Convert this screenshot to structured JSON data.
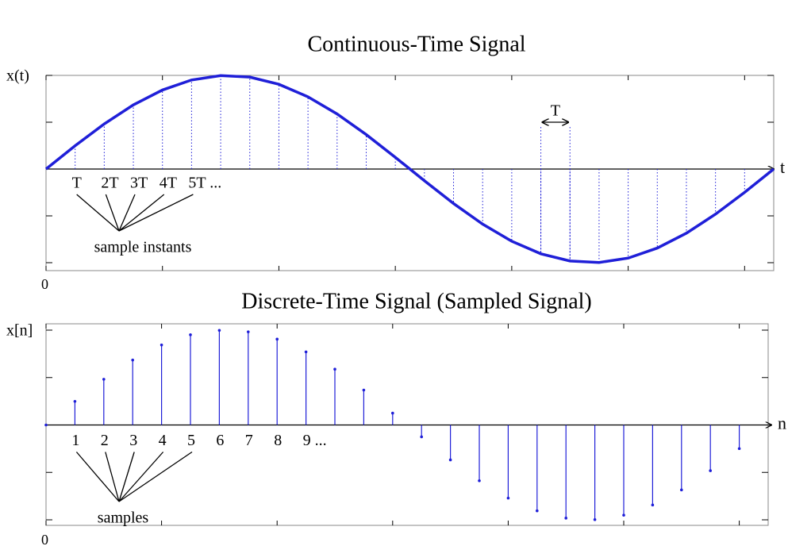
{
  "chart_data": [
    {
      "type": "line",
      "title": "Continuous-Time Signal",
      "y_label": "x(t)",
      "x_label": "t",
      "color": "#1f1fd8",
      "x": [
        0,
        1,
        2,
        3,
        4,
        5,
        6,
        7,
        8,
        9,
        10,
        11,
        12,
        13,
        14,
        15,
        16,
        17,
        18,
        19,
        20,
        21,
        22,
        23,
        24,
        25
      ],
      "values": [
        0,
        0.249,
        0.482,
        0.685,
        0.844,
        0.951,
        0.998,
        0.982,
        0.905,
        0.771,
        0.588,
        0.368,
        0.125,
        -0.125,
        -0.368,
        -0.588,
        -0.771,
        -0.905,
        -0.982,
        -0.998,
        -0.951,
        -0.844,
        -0.685,
        -0.482,
        -0.249,
        0
      ],
      "xlim": [
        0,
        25
      ],
      "ylim": [
        -1,
        1
      ],
      "xticks": [
        0,
        4,
        8,
        12,
        16,
        20,
        24
      ],
      "yticks": [
        -1,
        -0.5,
        0,
        0.5,
        1
      ],
      "origin_label": "0",
      "sample_labels": [
        "T",
        "2T",
        "3T",
        "4T",
        "5T ..."
      ],
      "annotation": "sample instants",
      "period_label": "T"
    },
    {
      "type": "stem",
      "title": "Discrete-Time Signal (Sampled Signal)",
      "y_label": "x[n]",
      "x_label": "n",
      "color": "#1f1fd8",
      "x": [
        0,
        1,
        2,
        3,
        4,
        5,
        6,
        7,
        8,
        9,
        10,
        11,
        12,
        13,
        14,
        15,
        16,
        17,
        18,
        19,
        20,
        21,
        22,
        23,
        24
      ],
      "values": [
        0,
        0.249,
        0.482,
        0.685,
        0.844,
        0.951,
        0.998,
        0.982,
        0.905,
        0.771,
        0.588,
        0.368,
        0.125,
        -0.125,
        -0.368,
        -0.588,
        -0.771,
        -0.905,
        -0.982,
        -0.998,
        -0.951,
        -0.844,
        -0.685,
        -0.482,
        -0.249
      ],
      "xlim": [
        0,
        25
      ],
      "ylim": [
        -1,
        1
      ],
      "xticks": [
        0,
        4,
        8,
        12,
        16,
        20,
        24
      ],
      "yticks": [
        -1,
        -0.5,
        0,
        0.5,
        1
      ],
      "origin_label": "0",
      "sample_labels": [
        "1",
        "2",
        "3",
        "4",
        "5",
        "6",
        "7",
        "8",
        "9 ..."
      ],
      "annotation": "samples"
    }
  ]
}
